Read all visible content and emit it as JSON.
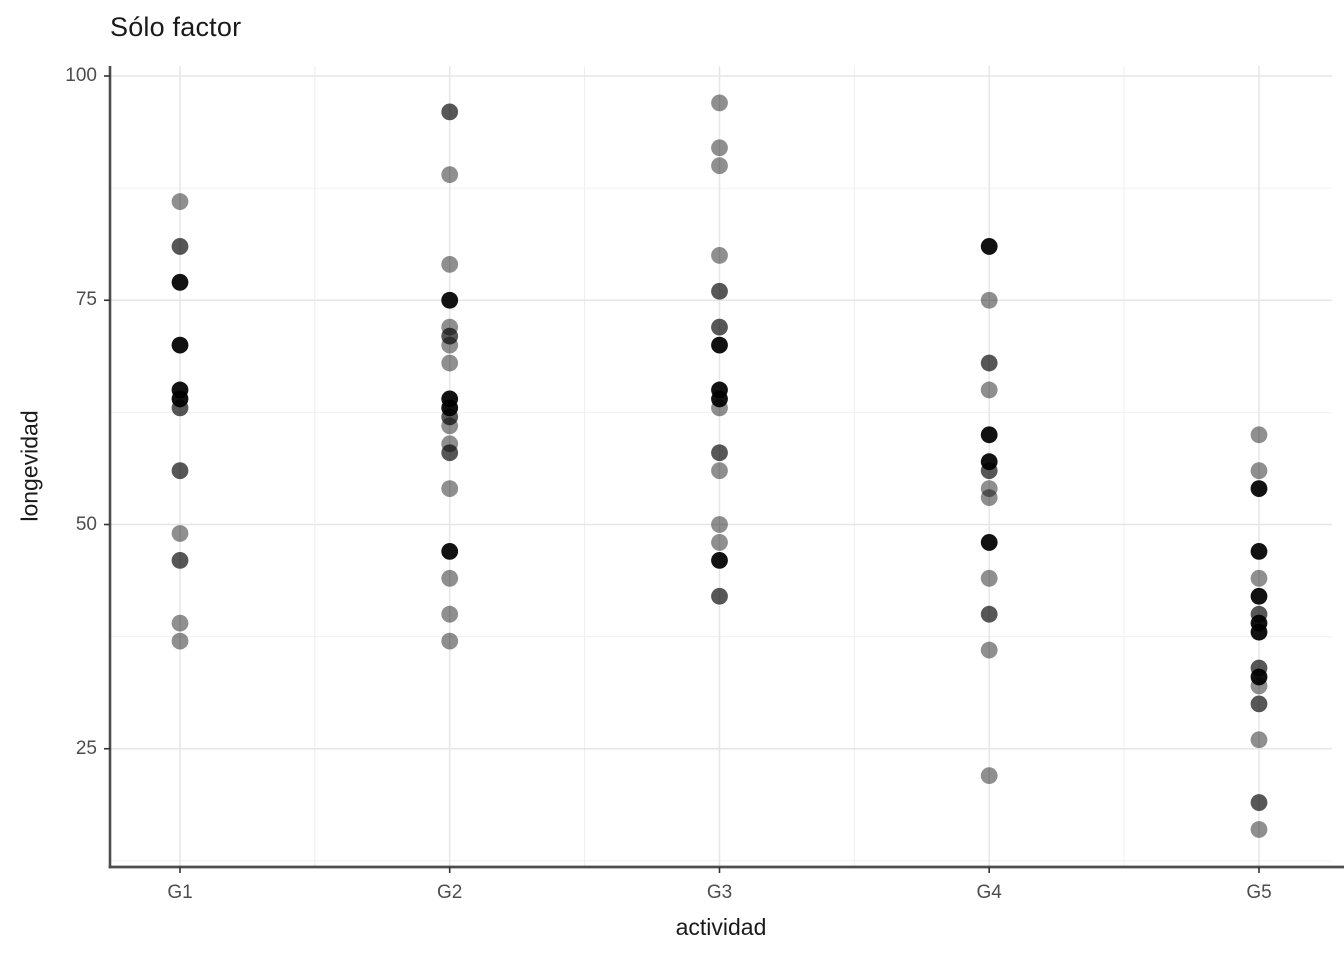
{
  "colors": {
    "background": "#ffffff",
    "grid_major": "#e6e6e6",
    "grid_minor": "#f0f0f0",
    "axis_line": "#4d4d4d",
    "tick_mark": "#333333",
    "tick_text": "#4d4d4d",
    "title_text": "#1a1a1a",
    "point": "#000000"
  },
  "chart_data": {
    "type": "scatter",
    "title": "Sólo factor",
    "xlabel": "actividad",
    "ylabel": "longevidad",
    "categories": [
      "G1",
      "G2",
      "G3",
      "G4",
      "G5"
    ],
    "y_tick_labels": [
      "100",
      "75",
      "50",
      "25"
    ],
    "y_ticks": [
      100,
      75,
      50,
      25
    ],
    "y_minor_ticks": [
      87.5,
      62.5,
      37.5,
      12.5
    ],
    "ylim": [
      11.6,
      101.1
    ],
    "grid": "major+minor",
    "legend": "none",
    "shade_opacity": {
      "light": 0.44,
      "mid": 0.66,
      "dark": 0.93
    },
    "groups": [
      {
        "category": "G1",
        "points": [
          {
            "y": 86,
            "shade": "light"
          },
          {
            "y": 81,
            "shade": "mid"
          },
          {
            "y": 77,
            "shade": "dark"
          },
          {
            "y": 70,
            "shade": "dark"
          },
          {
            "y": 65,
            "shade": "dark"
          },
          {
            "y": 64,
            "shade": "dark"
          },
          {
            "y": 63,
            "shade": "mid"
          },
          {
            "y": 56,
            "shade": "mid"
          },
          {
            "y": 49,
            "shade": "light"
          },
          {
            "y": 46,
            "shade": "mid"
          },
          {
            "y": 39,
            "shade": "light"
          },
          {
            "y": 37,
            "shade": "light"
          }
        ]
      },
      {
        "category": "G2",
        "points": [
          {
            "y": 96,
            "shade": "mid"
          },
          {
            "y": 89,
            "shade": "light"
          },
          {
            "y": 79,
            "shade": "light"
          },
          {
            "y": 75,
            "shade": "dark"
          },
          {
            "y": 72,
            "shade": "light"
          },
          {
            "y": 71,
            "shade": "mid"
          },
          {
            "y": 70,
            "shade": "light"
          },
          {
            "y": 68,
            "shade": "light"
          },
          {
            "y": 64,
            "shade": "dark"
          },
          {
            "y": 63,
            "shade": "dark"
          },
          {
            "y": 62,
            "shade": "mid"
          },
          {
            "y": 61,
            "shade": "light"
          },
          {
            "y": 59,
            "shade": "light"
          },
          {
            "y": 58,
            "shade": "mid"
          },
          {
            "y": 54,
            "shade": "light"
          },
          {
            "y": 47,
            "shade": "dark"
          },
          {
            "y": 44,
            "shade": "light"
          },
          {
            "y": 40,
            "shade": "light"
          },
          {
            "y": 37,
            "shade": "light"
          }
        ]
      },
      {
        "category": "G3",
        "points": [
          {
            "y": 97,
            "shade": "light"
          },
          {
            "y": 92,
            "shade": "light"
          },
          {
            "y": 90,
            "shade": "light"
          },
          {
            "y": 80,
            "shade": "light"
          },
          {
            "y": 76,
            "shade": "mid"
          },
          {
            "y": 72,
            "shade": "mid"
          },
          {
            "y": 70,
            "shade": "dark"
          },
          {
            "y": 65,
            "shade": "dark"
          },
          {
            "y": 64,
            "shade": "dark"
          },
          {
            "y": 63,
            "shade": "light"
          },
          {
            "y": 58,
            "shade": "mid"
          },
          {
            "y": 56,
            "shade": "light"
          },
          {
            "y": 50,
            "shade": "light"
          },
          {
            "y": 48,
            "shade": "light"
          },
          {
            "y": 46,
            "shade": "dark"
          },
          {
            "y": 42,
            "shade": "mid"
          }
        ]
      },
      {
        "category": "G4",
        "points": [
          {
            "y": 81,
            "shade": "dark"
          },
          {
            "y": 75,
            "shade": "light"
          },
          {
            "y": 68,
            "shade": "mid"
          },
          {
            "y": 65,
            "shade": "light"
          },
          {
            "y": 60,
            "shade": "dark"
          },
          {
            "y": 57,
            "shade": "dark"
          },
          {
            "y": 56,
            "shade": "mid"
          },
          {
            "y": 54,
            "shade": "light"
          },
          {
            "y": 53,
            "shade": "light"
          },
          {
            "y": 48,
            "shade": "dark"
          },
          {
            "y": 44,
            "shade": "light"
          },
          {
            "y": 40,
            "shade": "mid"
          },
          {
            "y": 36,
            "shade": "light"
          },
          {
            "y": 22,
            "shade": "light"
          }
        ]
      },
      {
        "category": "G5",
        "points": [
          {
            "y": 60,
            "shade": "light"
          },
          {
            "y": 56,
            "shade": "light"
          },
          {
            "y": 54,
            "shade": "dark"
          },
          {
            "y": 47,
            "shade": "dark"
          },
          {
            "y": 44,
            "shade": "light"
          },
          {
            "y": 42,
            "shade": "dark"
          },
          {
            "y": 40,
            "shade": "mid"
          },
          {
            "y": 39,
            "shade": "dark"
          },
          {
            "y": 38,
            "shade": "dark"
          },
          {
            "y": 34,
            "shade": "mid"
          },
          {
            "y": 33,
            "shade": "dark"
          },
          {
            "y": 32,
            "shade": "light"
          },
          {
            "y": 30,
            "shade": "mid"
          },
          {
            "y": 26,
            "shade": "light"
          },
          {
            "y": 19,
            "shade": "mid"
          },
          {
            "y": 16,
            "shade": "light"
          }
        ]
      }
    ]
  }
}
